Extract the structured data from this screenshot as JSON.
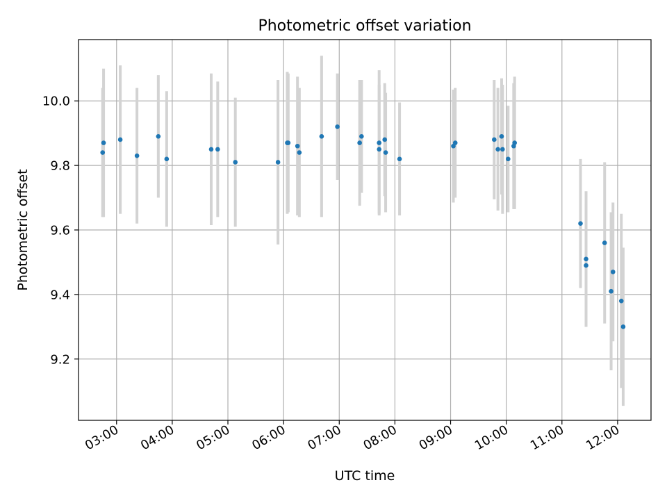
{
  "chart_data": {
    "type": "scatter",
    "title": "Photometric offset variation",
    "xlabel": "UTC time",
    "ylabel": "Photometric offset",
    "grid": true,
    "x_ticks": [
      "03:00",
      "04:00",
      "05:00",
      "06:00",
      "07:00",
      "08:00",
      "09:00",
      "10:00",
      "11:00",
      "12:00"
    ],
    "y_ticks": [
      9.2,
      9.4,
      9.6,
      9.8,
      10.0
    ],
    "y_tick_labels": [
      "9.2",
      "9.4",
      "9.6",
      "9.8",
      "10.0"
    ],
    "xlim": [
      "02:19",
      "12:36"
    ],
    "ylim": [
      9.01,
      10.19
    ],
    "colors": {
      "points": "#1f77b4",
      "error_bars": "#d3d3d3",
      "grid": "#b0b0b0"
    },
    "points": [
      {
        "x": "02:45",
        "y": 9.84,
        "err": 0.2
      },
      {
        "x": "02:46",
        "y": 9.87,
        "err": 0.23
      },
      {
        "x": "03:04",
        "y": 9.88,
        "err": 0.23
      },
      {
        "x": "03:22",
        "y": 9.83,
        "err": 0.21
      },
      {
        "x": "03:45",
        "y": 9.89,
        "err": 0.19
      },
      {
        "x": "03:54",
        "y": 9.82,
        "err": 0.21
      },
      {
        "x": "04:42",
        "y": 9.85,
        "err": 0.235
      },
      {
        "x": "04:49",
        "y": 9.85,
        "err": 0.21
      },
      {
        "x": "05:08",
        "y": 9.81,
        "err": 0.2
      },
      {
        "x": "05:54",
        "y": 9.81,
        "err": 0.255
      },
      {
        "x": "06:04",
        "y": 9.87,
        "err": 0.22
      },
      {
        "x": "06:05",
        "y": 9.87,
        "err": 0.215
      },
      {
        "x": "06:15",
        "y": 9.86,
        "err": 0.215
      },
      {
        "x": "06:17",
        "y": 9.84,
        "err": 0.2
      },
      {
        "x": "06:41",
        "y": 9.89,
        "err": 0.25
      },
      {
        "x": "06:58",
        "y": 9.92,
        "err": 0.165
      },
      {
        "x": "07:22",
        "y": 9.87,
        "err": 0.195
      },
      {
        "x": "07:24",
        "y": 9.89,
        "err": 0.175
      },
      {
        "x": "07:43",
        "y": 9.87,
        "err": 0.225
      },
      {
        "x": "07:43",
        "y": 9.85,
        "err": 0.2
      },
      {
        "x": "07:49",
        "y": 9.88,
        "err": 0.175
      },
      {
        "x": "07:50",
        "y": 9.84,
        "err": 0.185
      },
      {
        "x": "08:05",
        "y": 9.82,
        "err": 0.175
      },
      {
        "x": "09:03",
        "y": 9.86,
        "err": 0.175
      },
      {
        "x": "09:05",
        "y": 9.87,
        "err": 0.17
      },
      {
        "x": "09:47",
        "y": 9.88,
        "err": 0.185
      },
      {
        "x": "09:51",
        "y": 9.85,
        "err": 0.19
      },
      {
        "x": "09:55",
        "y": 9.89,
        "err": 0.18
      },
      {
        "x": "09:56",
        "y": 9.85,
        "err": 0.2
      },
      {
        "x": "10:02",
        "y": 9.82,
        "err": 0.165
      },
      {
        "x": "10:08",
        "y": 9.86,
        "err": 0.195
      },
      {
        "x": "10:09",
        "y": 9.87,
        "err": 0.205
      },
      {
        "x": "11:20",
        "y": 9.62,
        "err": 0.2
      },
      {
        "x": "11:26",
        "y": 9.51,
        "err": 0.21
      },
      {
        "x": "11:26",
        "y": 9.49,
        "err": 0.19
      },
      {
        "x": "11:46",
        "y": 9.56,
        "err": 0.25
      },
      {
        "x": "11:53",
        "y": 9.41,
        "err": 0.245
      },
      {
        "x": "11:55",
        "y": 9.47,
        "err": 0.215
      },
      {
        "x": "12:04",
        "y": 9.38,
        "err": 0.27
      },
      {
        "x": "12:06",
        "y": 9.3,
        "err": 0.245
      }
    ]
  }
}
